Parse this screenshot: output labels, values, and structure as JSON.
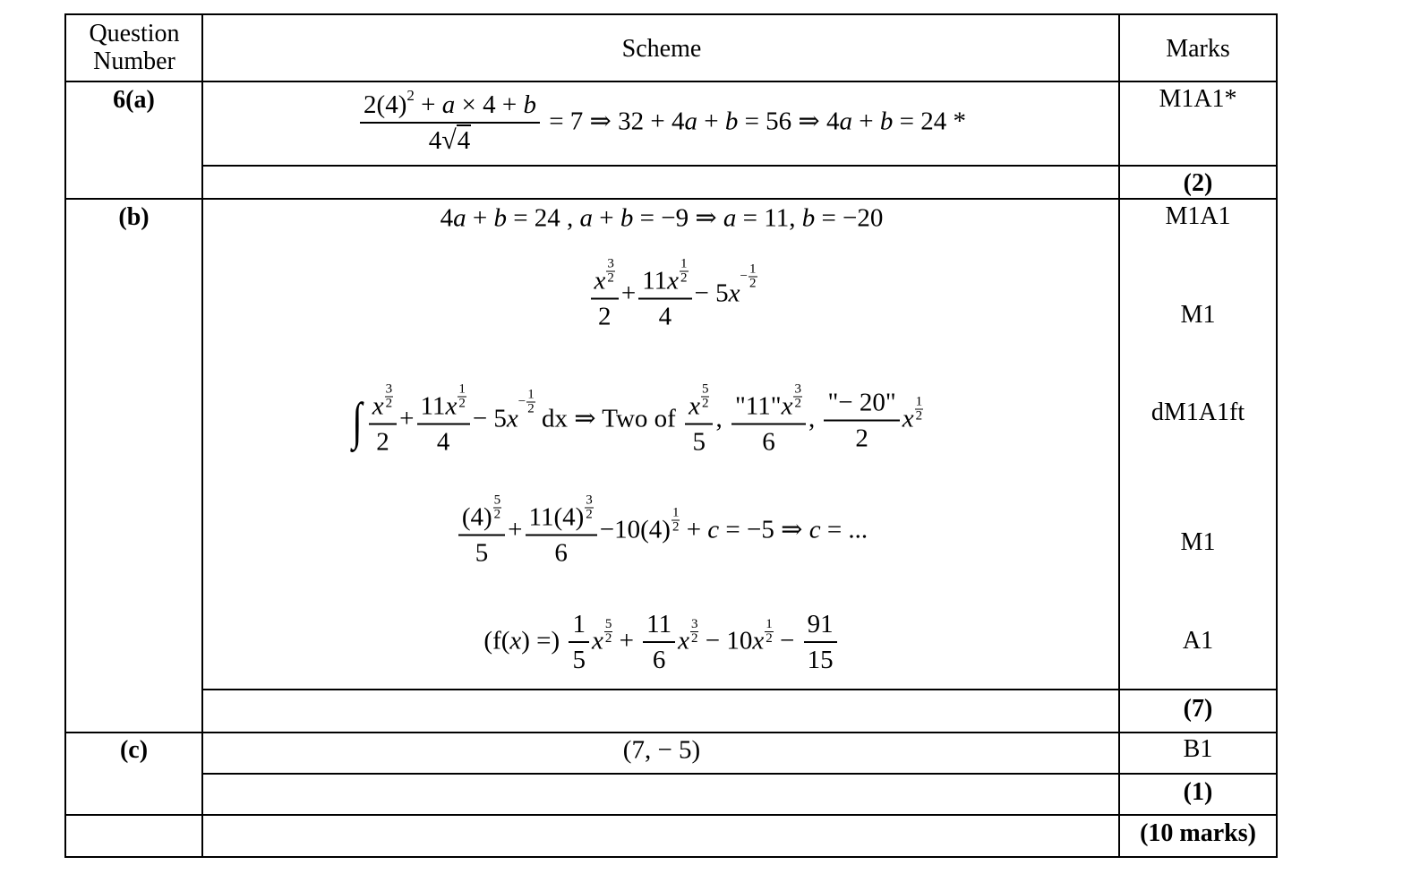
{
  "header": {
    "question_number": "Question Number",
    "scheme": "Scheme",
    "marks": "Marks"
  },
  "rows": [
    {
      "label": "6(a)",
      "marks": [
        "M1A1*",
        "(2)"
      ],
      "lines": [
        [
          {
            "fr": [
              [
                "2(4)",
                {
                  "sup": "2"
                },
                " + ",
                {
                  "i": "a"
                },
                " × 4 + ",
                {
                  "i": "b"
                }
              ],
              [
                "4",
                {
                  "sqrt": "4"
                }
              ]
            ]
          },
          " = 7 ⇒ 32 + 4",
          {
            "i": "a"
          },
          " + ",
          {
            "i": "b"
          },
          " = 56 ⇒ 4",
          {
            "i": "a"
          },
          " + ",
          {
            "i": "b"
          },
          " = 24    *"
        ]
      ]
    },
    {
      "label": "(b)",
      "marks": [
        "M1A1",
        "M1",
        "dM1A1ft",
        "M1",
        "A1",
        "(7)"
      ],
      "lines": [
        [
          "4",
          {
            "i": "a"
          },
          " + ",
          {
            "i": "b"
          },
          " = 24 ,  ",
          {
            "i": "a"
          },
          " + ",
          {
            "i": "b"
          },
          " = −9 ⇒ ",
          {
            "i": "a"
          },
          " = 11,  ",
          {
            "i": "b"
          },
          " = −20"
        ],
        [
          {
            "fr": [
              [
                {
                  "i": "x"
                },
                {
                  "hf": [
                    "3",
                    "2"
                  ]
                }
              ],
              [
                "2"
              ]
            ]
          },
          "+",
          {
            "fr": [
              [
                "11",
                {
                  "i": "x"
                },
                {
                  "hf": [
                    "1",
                    "2"
                  ]
                }
              ],
              [
                "4"
              ]
            ]
          },
          "− 5",
          {
            "i": "x"
          },
          {
            "hf": [
              "1",
              "2"
            ],
            "neg": true
          }
        ],
        [
          {
            "int": "∫"
          },
          {
            "fr": [
              [
                {
                  "i": "x"
                },
                {
                  "hf": [
                    "3",
                    "2"
                  ]
                }
              ],
              [
                "2"
              ]
            ]
          },
          "+",
          {
            "fr": [
              [
                "11",
                {
                  "i": "x"
                },
                {
                  "hf": [
                    "1",
                    "2"
                  ]
                }
              ],
              [
                "4"
              ]
            ]
          },
          "− 5",
          {
            "i": "x"
          },
          {
            "hf": [
              "1",
              "2"
            ],
            "neg": true
          },
          " dx ⇒ Two of ",
          {
            "fr": [
              [
                {
                  "i": "x"
                },
                {
                  "hf": [
                    "5",
                    "2"
                  ]
                }
              ],
              [
                "5"
              ]
            ]
          },
          ", ",
          {
            "fr": [
              [
                "\"11\"",
                {
                  "i": "x"
                },
                {
                  "hf": [
                    "3",
                    "2"
                  ]
                }
              ],
              [
                "6"
              ]
            ]
          },
          ", ",
          {
            "fr": [
              [
                "\"− 20\""
              ],
              [
                "2"
              ]
            ]
          },
          {
            "i": "x"
          },
          {
            "hf": [
              "1",
              "2"
            ]
          }
        ],
        [
          {
            "fr": [
              [
                "(4)",
                {
                  "hf": [
                    "5",
                    "2"
                  ]
                }
              ],
              [
                "5"
              ]
            ]
          },
          "+",
          {
            "fr": [
              [
                "11(4)",
                {
                  "hf": [
                    "3",
                    "2"
                  ]
                }
              ],
              [
                "6"
              ]
            ]
          },
          "−10(4)",
          {
            "hf": [
              "1",
              "2"
            ]
          },
          " + ",
          {
            "i": "c"
          },
          " = −5 ⇒ ",
          {
            "i": "c"
          },
          " = ..."
        ],
        [
          "(f(",
          {
            "i": "x"
          },
          ") =) ",
          {
            "fr": [
              [
                "1"
              ],
              [
                "5"
              ]
            ]
          },
          {
            "i": "x"
          },
          {
            "hf": [
              "5",
              "2"
            ]
          },
          " + ",
          {
            "fr": [
              [
                "11"
              ],
              [
                "6"
              ]
            ]
          },
          {
            "i": "x"
          },
          {
            "hf": [
              "3",
              "2"
            ]
          },
          " − 10",
          {
            "i": "x"
          },
          {
            "hf": [
              "1",
              "2"
            ]
          },
          " − ",
          {
            "fr": [
              [
                "91"
              ],
              [
                "15"
              ]
            ]
          }
        ]
      ]
    },
    {
      "label": "(c)",
      "marks": [
        "B1",
        "(1)"
      ],
      "lines": [
        [
          "(7, − 5)"
        ]
      ]
    }
  ],
  "total": "(10 marks)"
}
